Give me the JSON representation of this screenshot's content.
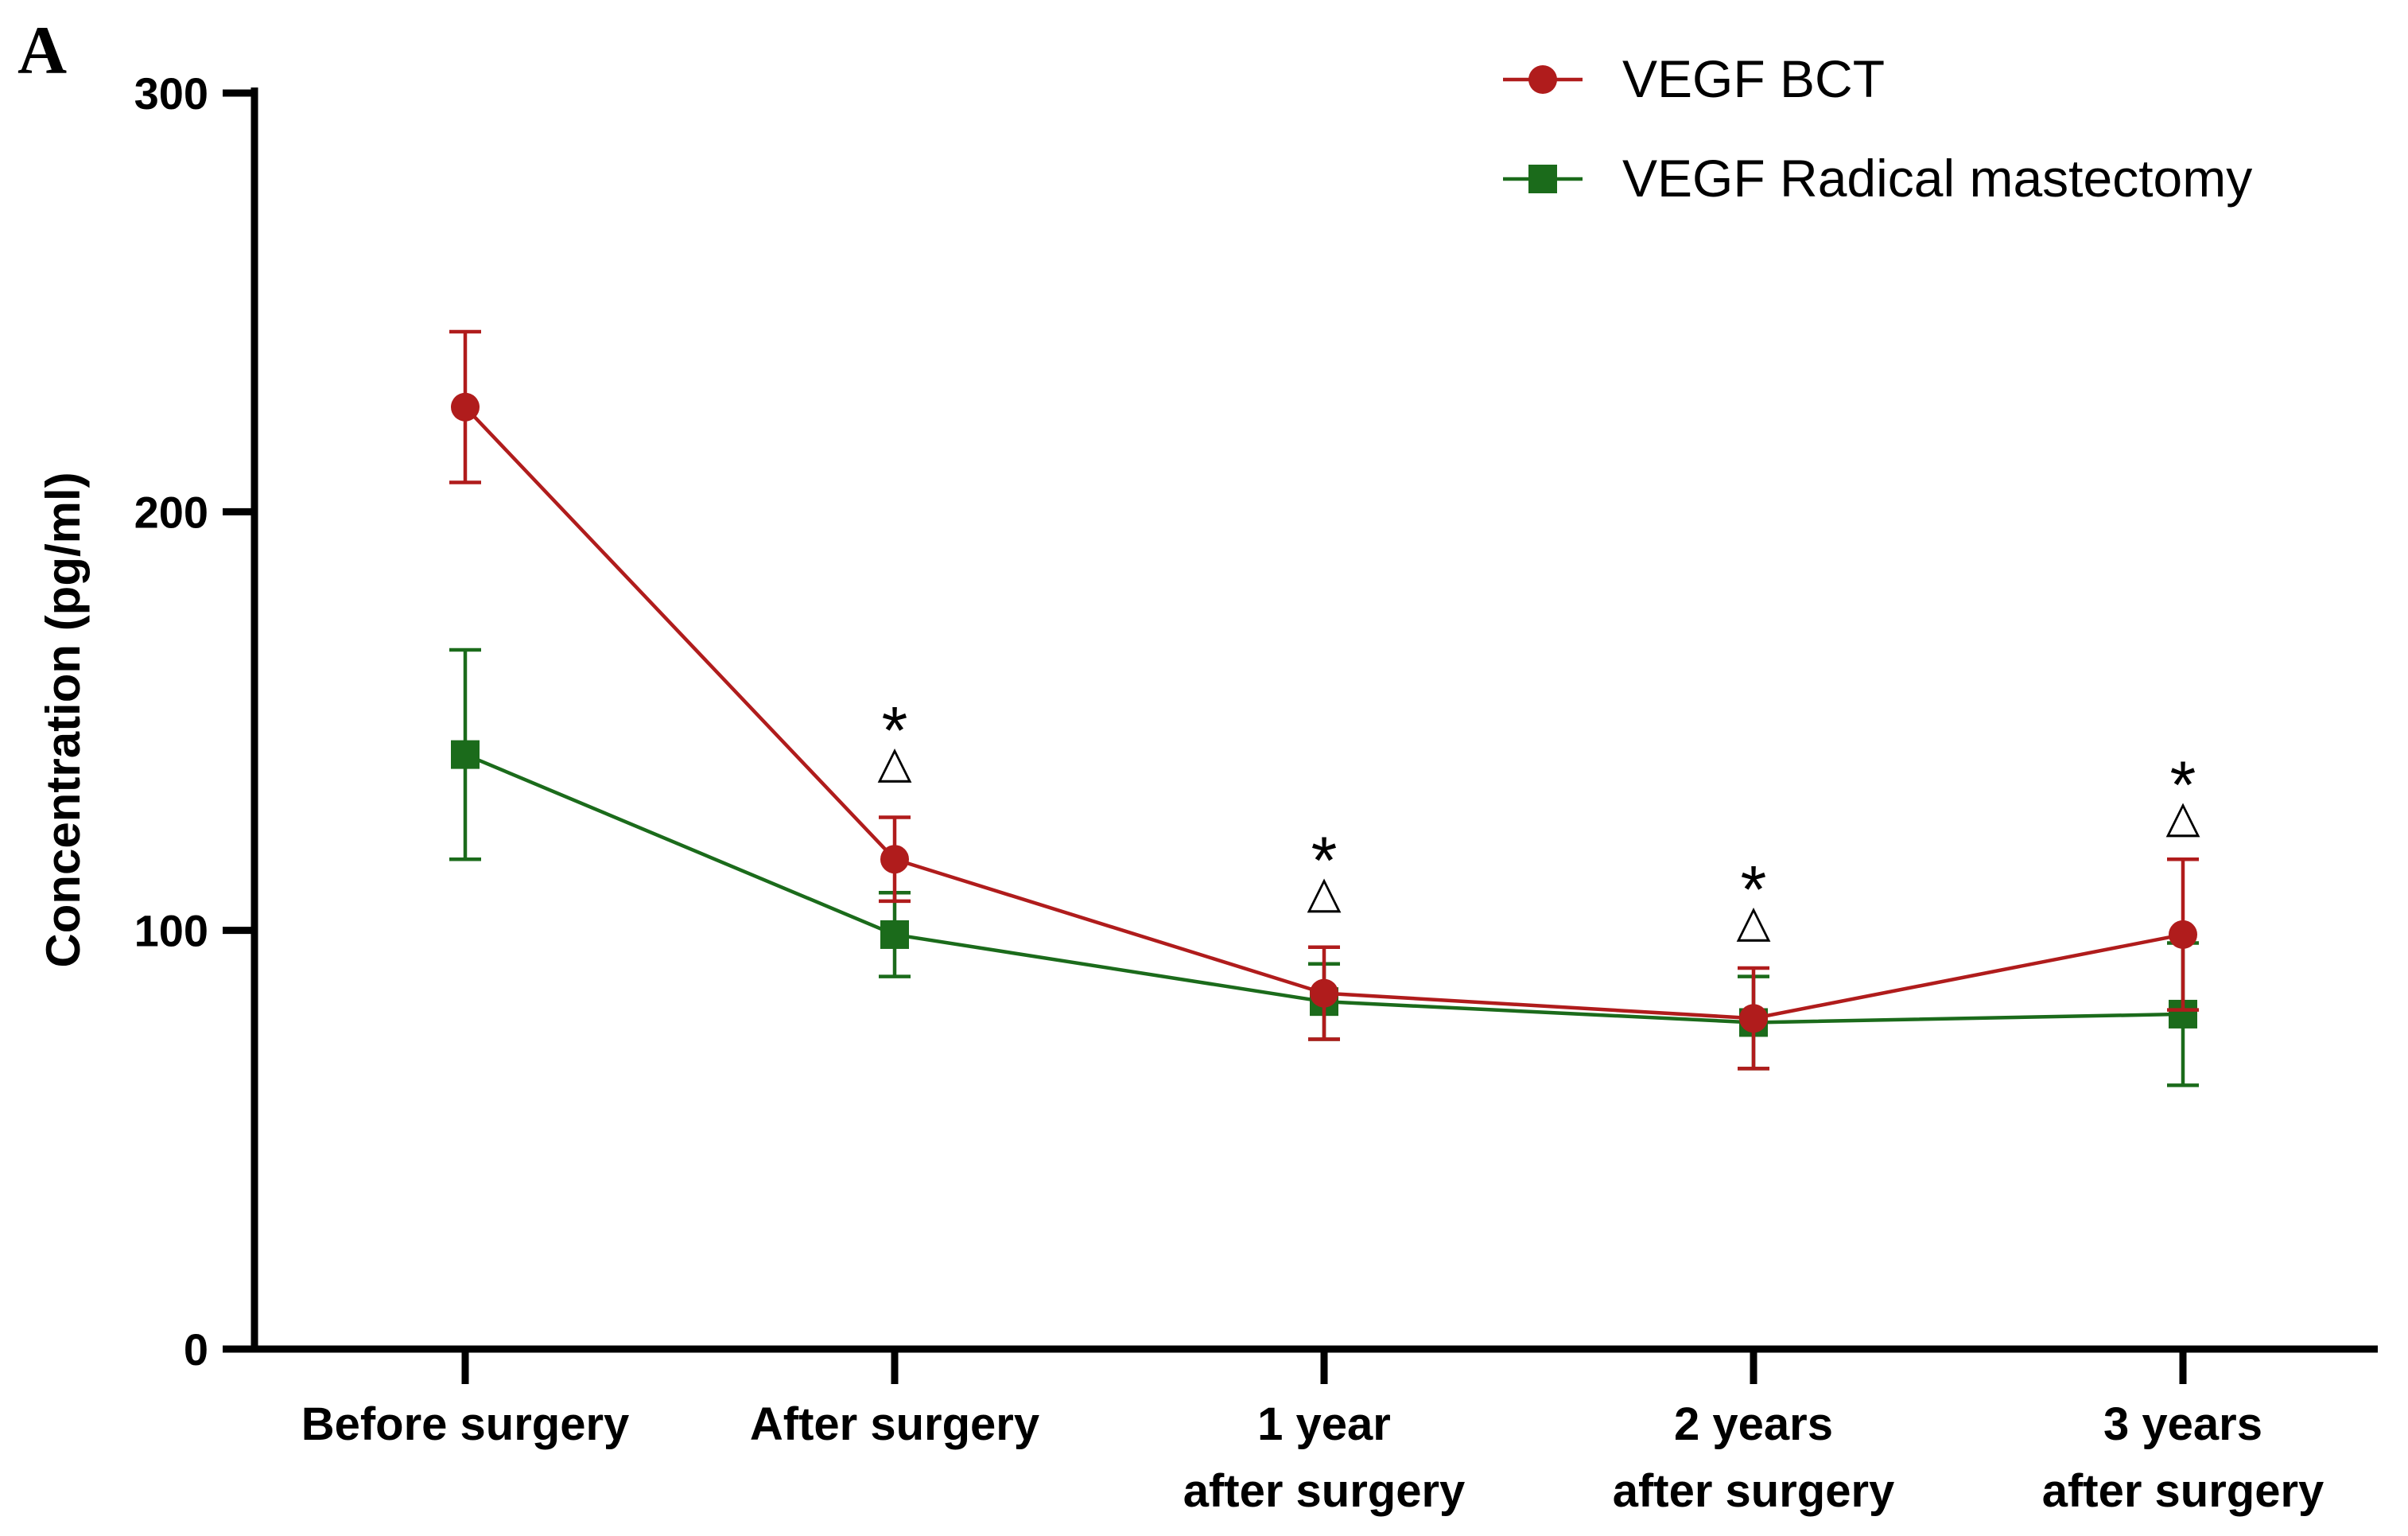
{
  "chart_data": {
    "type": "line",
    "panel_label": "A",
    "title": "",
    "xlabel": "",
    "ylabel": "Concentration (pg/ml)",
    "ylim": [
      0,
      300
    ],
    "yticks": [
      "0",
      "100",
      "200",
      "300"
    ],
    "categories": [
      [
        "Before surgery"
      ],
      [
        "After surgery"
      ],
      [
        "1 year",
        "after surgery"
      ],
      [
        "2 years",
        "after surgery"
      ],
      [
        "3 years",
        "after surgery"
      ]
    ],
    "series": [
      {
        "name": "VEGF BCT",
        "color": "#b01c1c",
        "marker": "circle",
        "values": [
          225,
          117,
          85,
          79,
          99
        ],
        "errors": [
          18,
          10,
          11,
          12,
          18
        ]
      },
      {
        "name": "VEGF Radical mastectomy",
        "color": "#1b6b1b",
        "marker": "square",
        "values": [
          142,
          99,
          83,
          78,
          80
        ],
        "errors": [
          25,
          10,
          9,
          11,
          17
        ]
      }
    ],
    "annotations": [
      {
        "category_index": 1,
        "star": "*",
        "triangle": "△",
        "y": 140
      },
      {
        "category_index": 2,
        "star": "*",
        "triangle": "△",
        "y": 109
      },
      {
        "category_index": 3,
        "star": "*",
        "triangle": "△",
        "y": 102
      },
      {
        "category_index": 4,
        "star": "*",
        "triangle": "△",
        "y": 127
      }
    ],
    "legend_position": "top-right"
  }
}
